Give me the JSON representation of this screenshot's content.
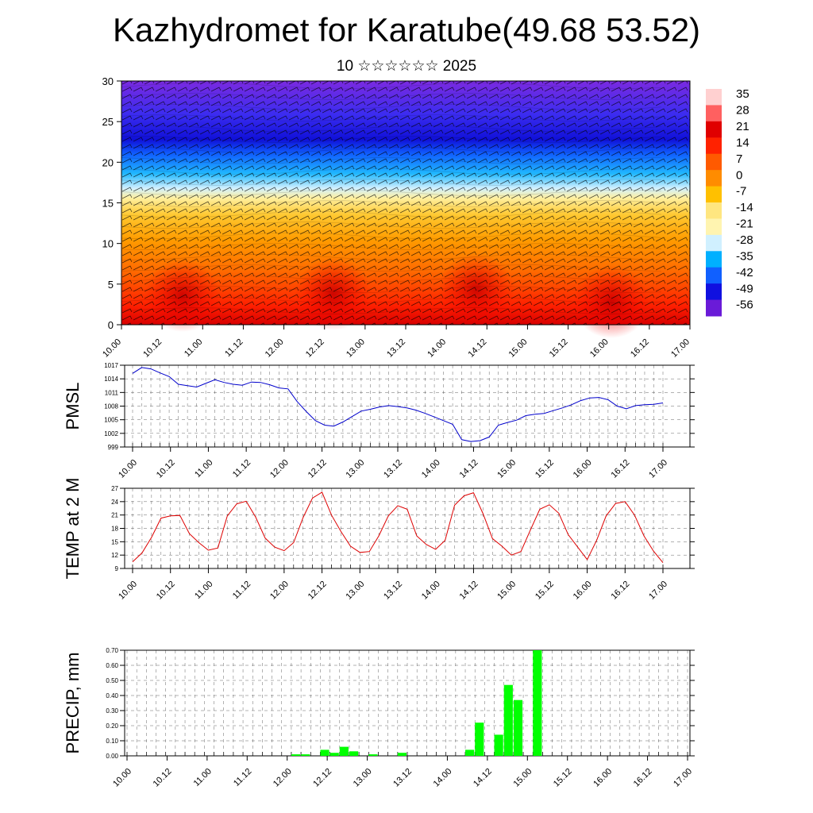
{
  "title": "Kazhydromet for Karatube(49.68 53.52)",
  "subtitle": "10 ☆☆☆☆☆☆ 2025",
  "time_ticks": [
    "10.00",
    "10.12",
    "11.00",
    "11.12",
    "12.00",
    "12.12",
    "13.00",
    "13.12",
    "14.00",
    "14.12",
    "15.00",
    "15.12",
    "16.00",
    "16.12",
    "17.00"
  ],
  "colorbar": {
    "labels": [
      "35",
      "28",
      "21",
      "14",
      "7",
      "0",
      "-7",
      "-14",
      "-21",
      "-28",
      "-35",
      "-42",
      "-49",
      "-56"
    ],
    "colors": [
      "#ffd0d0",
      "#ff6060",
      "#e00000",
      "#ff2200",
      "#ff5a00",
      "#ff8c00",
      "#ffc000",
      "#ffe680",
      "#fff4b0",
      "#d0f0ff",
      "#00b0ff",
      "#1060ff",
      "#1010e0",
      "#6a1bd8"
    ]
  },
  "chart_data": [
    {
      "type": "heatmap",
      "name": "cross-section",
      "ylim": [
        0,
        30
      ],
      "yticks": [
        "0",
        "5",
        "10",
        "15",
        "20",
        "25",
        "30"
      ],
      "x_range": [
        "10.00",
        "17.00"
      ],
      "notes_colors": {
        "top": "#7020e0",
        "mid": "#3050ff",
        "freezing": "#fff0a0",
        "surface": "#e00000"
      }
    },
    {
      "type": "line",
      "ylabel": "PMSL",
      "ylim": [
        999,
        1017
      ],
      "yticks": [
        "999",
        "1002",
        "1005",
        "1008",
        "1011",
        "1014",
        "1017"
      ],
      "color": "#0000cc",
      "values": [
        1015.2,
        1016.5,
        1016.2,
        1015.3,
        1014.5,
        1012.8,
        1012.5,
        1012.2,
        1013.0,
        1013.8,
        1013.2,
        1012.8,
        1012.6,
        1013.3,
        1013.2,
        1012.7,
        1012.0,
        1011.8,
        1009.0,
        1006.8,
        1004.8,
        1003.8,
        1003.6,
        1004.5,
        1005.7,
        1006.9,
        1007.3,
        1007.8,
        1008.1,
        1007.9,
        1007.6,
        1007.1,
        1006.4,
        1005.6,
        1004.8,
        1004.0,
        1000.6,
        1000.2,
        1000.4,
        1001.2,
        1003.8,
        1004.4,
        1004.9,
        1005.9,
        1006.2,
        1006.4,
        1007.0,
        1007.6,
        1008.3,
        1009.2,
        1009.8,
        1009.9,
        1009.4,
        1008.0,
        1007.4,
        1008.1,
        1008.3,
        1008.4,
        1008.7
      ]
    },
    {
      "type": "line",
      "ylabel": "TEMP at 2 M",
      "ylim": [
        9,
        27
      ],
      "yticks": [
        "9",
        "12",
        "15",
        "18",
        "21",
        "24",
        "27"
      ],
      "color": "#dd0000",
      "values": [
        10.5,
        12.5,
        16.0,
        20.3,
        20.8,
        20.9,
        16.8,
        14.8,
        13.1,
        13.6,
        20.8,
        23.5,
        24.1,
        20.5,
        15.8,
        13.8,
        13.0,
        14.8,
        20.4,
        24.8,
        26.1,
        21.0,
        17.3,
        14.0,
        12.6,
        12.8,
        16.3,
        20.8,
        23.1,
        22.3,
        16.3,
        14.4,
        13.3,
        15.3,
        23.2,
        25.3,
        26.0,
        21.3,
        15.7,
        14.0,
        12.0,
        12.8,
        17.6,
        22.3,
        23.3,
        21.4,
        16.6,
        13.8,
        11.0,
        15.3,
        20.8,
        23.6,
        24.0,
        21.0,
        16.3,
        12.9,
        10.3
      ]
    },
    {
      "type": "bar",
      "ylabel": "PRECIP, mm",
      "ylim": [
        0,
        0.7
      ],
      "yticks": [
        "0.00",
        "0.10",
        "0.20",
        "0.30",
        "0.40",
        "0.50",
        "0.60",
        "0.70"
      ],
      "color": "#00ff00",
      "bars": [
        {
          "x": 17,
          "value": 0.01
        },
        {
          "x": 18,
          "value": 0.01
        },
        {
          "x": 20,
          "value": 0.04
        },
        {
          "x": 21,
          "value": 0.02
        },
        {
          "x": 22,
          "value": 0.06
        },
        {
          "x": 23,
          "value": 0.03
        },
        {
          "x": 25,
          "value": 0.01
        },
        {
          "x": 28,
          "value": 0.02
        },
        {
          "x": 35,
          "value": 0.04
        },
        {
          "x": 36,
          "value": 0.22
        },
        {
          "x": 38,
          "value": 0.14
        },
        {
          "x": 39,
          "value": 0.47
        },
        {
          "x": 40,
          "value": 0.37
        },
        {
          "x": 42,
          "value": 0.7
        }
      ]
    }
  ]
}
